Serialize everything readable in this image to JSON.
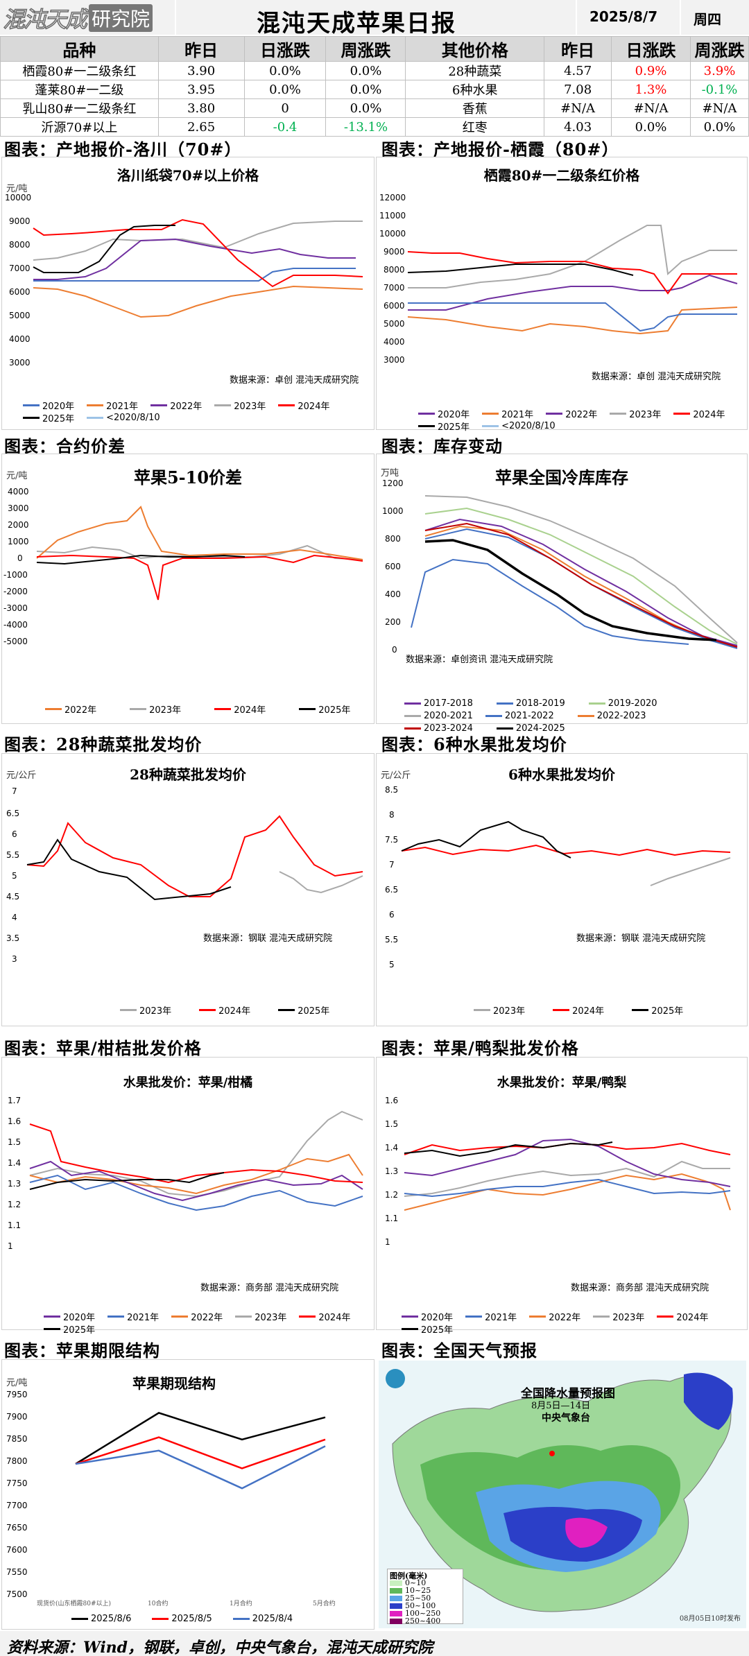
{
  "header": {
    "logo_text": "混沌天成",
    "logo_box": "研究院",
    "title": "混沌天成苹果日报",
    "date": "2025/8/7",
    "weekday": "周四"
  },
  "price_table": {
    "headers": [
      "品种",
      "昨日",
      "日涨跌",
      "周涨跌",
      "其他价格",
      "昨日",
      "日涨跌",
      "周涨跌"
    ],
    "rows": [
      [
        "栖霞80#一二级条红",
        "3.90",
        "0.0%",
        "0.0%",
        "28种蔬菜",
        "4.57",
        "0.9%",
        "3.9%"
      ],
      [
        "蓬莱80#一二级",
        "3.95",
        "0.0%",
        "0.0%",
        "6种水果",
        "7.08",
        "1.3%",
        "-0.1%"
      ],
      [
        "乳山80#一二级条红",
        "3.80",
        "0",
        "0.0%",
        "香蕉",
        "#N/A",
        "#N/A",
        "#N/A"
      ],
      [
        "沂源70#以上",
        "2.65",
        "-0.4",
        "-13.1%",
        "红枣",
        "4.03",
        "0.0%",
        "0.0%"
      ]
    ]
  },
  "sections": {
    "s1": "图表：产地报价-洛川（70#）",
    "s2": "图表：产地报价-栖霞（80#）",
    "s3": "图表：合约价差",
    "s4": "图表：库存变动",
    "s5": "图表：28种蔬菜批发均价",
    "s6": "图表：6种水果批发均价",
    "s7": "图表：苹果/柑桔批发价格",
    "s8": "图表：苹果/鸭梨批发价格",
    "s9": "图表：苹果期限结构",
    "s10": "图表：全国天气预报"
  },
  "charts": {
    "luochuan": {
      "title": "洛川纸袋70#以上价格",
      "unit": "元/吨",
      "source": "数据来源：卓创   混沌天成研究院",
      "yticks": [
        "10000",
        "9000",
        "8000",
        "7000",
        "6000",
        "5000",
        "4000",
        "3000"
      ],
      "legend": [
        "2020年",
        "2021年",
        "2022年",
        "2023年",
        "2024年",
        "2025年",
        "<2020/8/10"
      ]
    },
    "qixia": {
      "title": "栖霞80#一二级条红价格",
      "unit": "元/吨",
      "source": "数据来源：卓创   混沌天成研究院",
      "yticks": [
        "12000",
        "11000",
        "10000",
        "9000",
        "8000",
        "7000",
        "6000",
        "5000",
        "4000",
        "3000"
      ],
      "legend": [
        "2020年",
        "2021年",
        "2022年",
        "2023年",
        "2024年",
        "2025年",
        "<2020/8/10"
      ]
    },
    "spread": {
      "title": "苹果5-10价差",
      "unit": "元/吨",
      "yticks": [
        "4000",
        "3000",
        "2000",
        "1000",
        "0",
        "-1000",
        "-2000",
        "-3000",
        "-4000",
        "-5000"
      ],
      "legend": [
        "2022年",
        "2023年",
        "2024年",
        "2025年"
      ]
    },
    "stock": {
      "title": "苹果全国冷库库存",
      "unit": "万吨",
      "source": "数据来源：卓创资讯   混沌天成研究院",
      "yticks": [
        "1200",
        "1000",
        "800",
        "600",
        "400",
        "200",
        "0"
      ],
      "legend": [
        "2017-2018",
        "2018-2019",
        "2019-2020",
        "2020-2021",
        "2021-2022",
        "2022-2023",
        "2023-2024",
        "2024-2025"
      ]
    },
    "veg": {
      "title": "28种蔬菜批发均价",
      "unit": "元/公斤",
      "source": "数据来源：钢联   混沌天成研究院",
      "yticks": [
        "7",
        "6.5",
        "6",
        "5.5",
        "5",
        "4.5",
        "4",
        "3.5",
        "3"
      ],
      "legend": [
        "2023年",
        "2024年",
        "2025年"
      ]
    },
    "fruit": {
      "title": "6种水果批发均价",
      "unit": "元/公斤",
      "source": "数据来源：钢联   混沌天成研究院",
      "yticks": [
        "8.5",
        "8",
        "7.5",
        "7",
        "6.5",
        "6",
        "5.5",
        "5"
      ],
      "legend": [
        "2023年",
        "2024年",
        "2025年"
      ]
    },
    "apple_citrus": {
      "title": "水果批发价：苹果/柑橘",
      "source": "数据来源：商务部   混沌天成研究院",
      "yticks": [
        "1.7",
        "1.6",
        "1.5",
        "1.4",
        "1.3",
        "1.2",
        "1.1",
        "1"
      ],
      "legend": [
        "2020年",
        "2021年",
        "2022年",
        "2023年",
        "2024年",
        "2025年"
      ]
    },
    "apple_pear": {
      "title": "水果批发价：苹果/鸭梨",
      "source": "数据来源：商务部   混沌天成研究院",
      "yticks": [
        "1.6",
        "1.5",
        "1.4",
        "1.3",
        "1.2",
        "1.1",
        "1"
      ],
      "legend": [
        "2020年",
        "2021年",
        "2022年",
        "2023年",
        "2024年",
        "2025年"
      ]
    },
    "term": {
      "title": "苹果期现结构",
      "unit": "元/吨",
      "yticks": [
        "7950",
        "7900",
        "7850",
        "7800",
        "7750",
        "7700",
        "7650",
        "7600",
        "7550",
        "7500"
      ],
      "xlabels": [
        "现货价(山东栖霞80#以上)",
        "10合约",
        "1月合约",
        "5月合约"
      ],
      "legend": [
        "2025/8/6",
        "2025/8/5",
        "2025/8/4"
      ]
    }
  },
  "chart_data": [
    {
      "type": "line",
      "title": "苹果期现结构",
      "ylabel": "元/吨",
      "ylim": [
        7500,
        7950
      ],
      "categories": [
        "现货价(山东栖霞80#以上)",
        "10合约",
        "1月合约",
        "5月合约"
      ],
      "series": [
        {
          "name": "2025/8/6",
          "values": [
            7800,
            7915,
            7855,
            7905
          ]
        },
        {
          "name": "2025/8/5",
          "values": [
            7800,
            7860,
            7790,
            7855
          ]
        },
        {
          "name": "2025/8/4",
          "values": [
            7800,
            7830,
            7745,
            7840
          ]
        }
      ]
    }
  ],
  "weather": {
    "title": "全国降水量预报图",
    "period": "8月5日—14日",
    "org": "中央气象台",
    "legend_title": "图例(毫米)",
    "legend": [
      "0~10",
      "10~25",
      "25~50",
      "50~100",
      "100~250",
      "250~400"
    ],
    "note": "08月05日10时发布"
  },
  "footer": "资料来源：Wind，钢联，卓创，中央气象台，混沌天成研究院"
}
